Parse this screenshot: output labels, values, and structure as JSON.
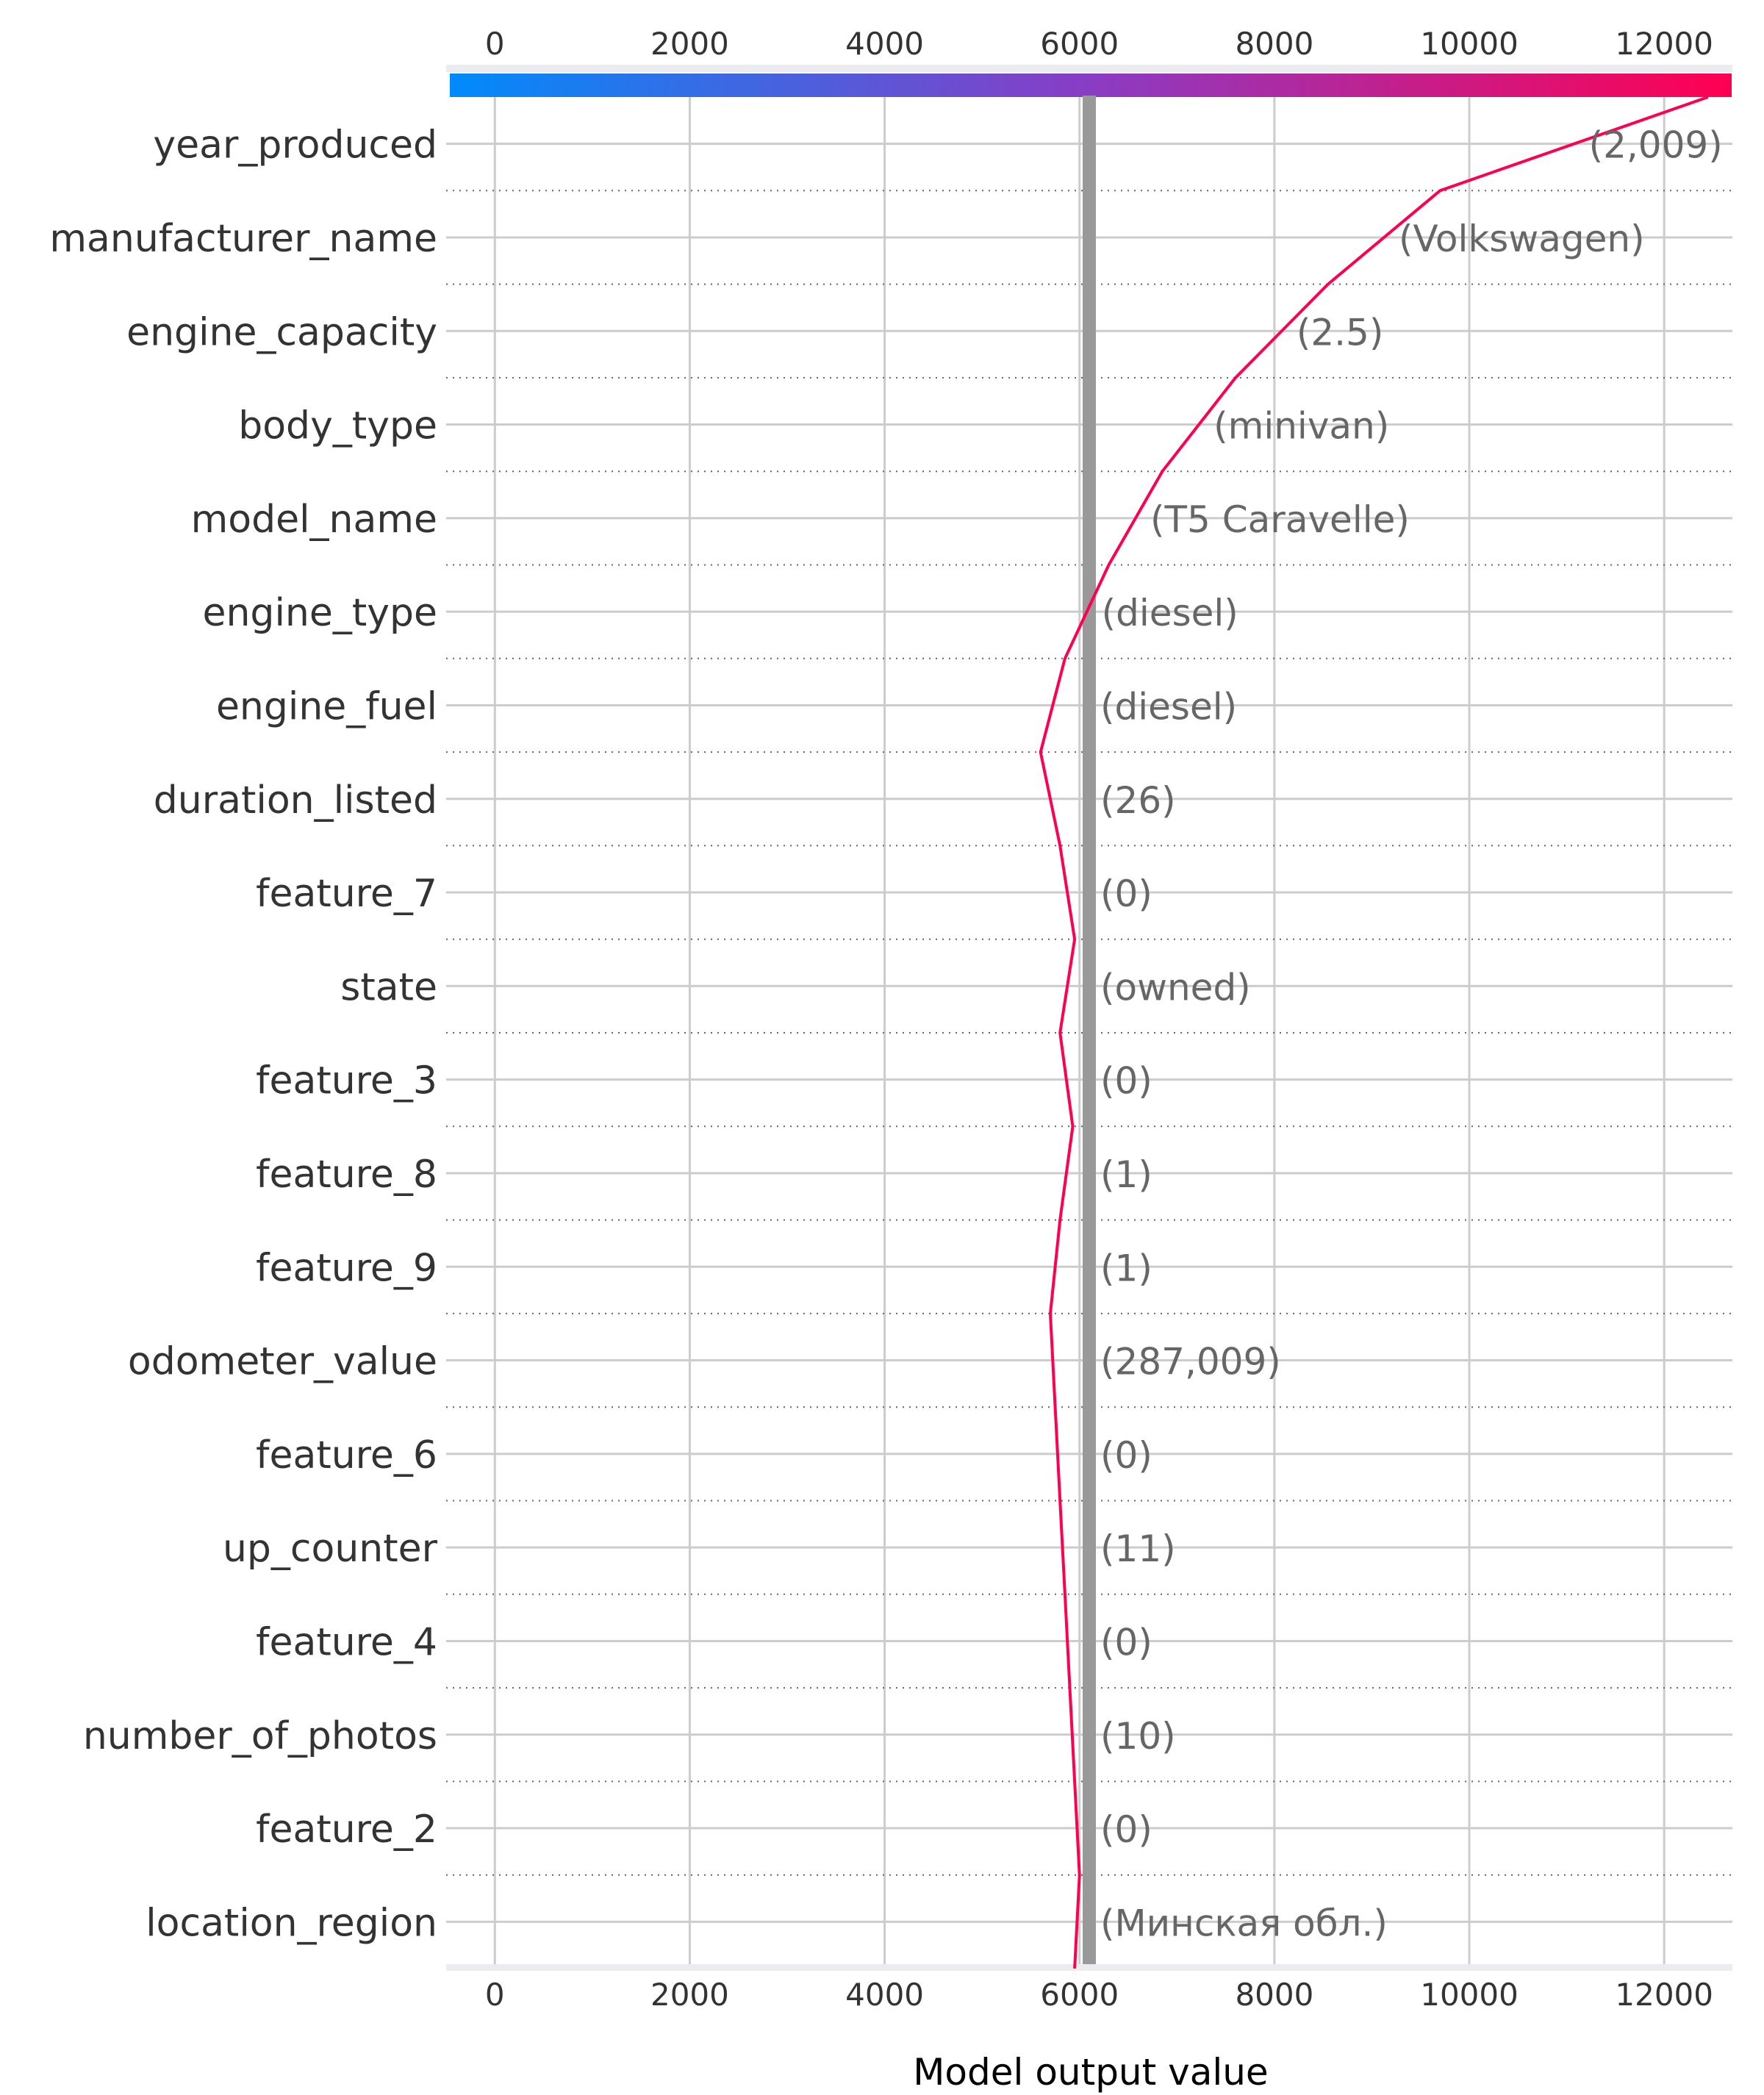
{
  "chart_data": {
    "type": "line",
    "title": "",
    "xlabel": "Model output value",
    "ylabel": "",
    "xlim": [
      -500,
      12700
    ],
    "x_ticks": [
      0,
      2000,
      4000,
      6000,
      8000,
      10000,
      12000
    ],
    "grid": true,
    "base_value": 6100,
    "colorbar": {
      "from": "#008bfb",
      "via": "#8a3cc4",
      "to": "#ff0051",
      "range": [
        -500,
        12700
      ]
    },
    "line_color": "#ff0051",
    "features": [
      {
        "name": "year_produced",
        "value_label": "(2,009)"
      },
      {
        "name": "manufacturer_name",
        "value_label": "(Volkswagen)"
      },
      {
        "name": "engine_capacity",
        "value_label": "(2.5)"
      },
      {
        "name": "body_type",
        "value_label": "(minivan)"
      },
      {
        "name": "model_name",
        "value_label": "(T5 Caravelle)"
      },
      {
        "name": "engine_type",
        "value_label": "(diesel)"
      },
      {
        "name": "engine_fuel",
        "value_label": "(diesel)"
      },
      {
        "name": "duration_listed",
        "value_label": "(26)"
      },
      {
        "name": "feature_7",
        "value_label": "(0)"
      },
      {
        "name": "state",
        "value_label": "(owned)"
      },
      {
        "name": "feature_3",
        "value_label": "(0)"
      },
      {
        "name": "feature_8",
        "value_label": "(1)"
      },
      {
        "name": "feature_9",
        "value_label": "(1)"
      },
      {
        "name": "odometer_value",
        "value_label": "(287,009)"
      },
      {
        "name": "feature_6",
        "value_label": "(0)"
      },
      {
        "name": "up_counter",
        "value_label": "(11)"
      },
      {
        "name": "feature_4",
        "value_label": "(0)"
      },
      {
        "name": "number_of_photos",
        "value_label": "(10)"
      },
      {
        "name": "feature_2",
        "value_label": "(0)"
      },
      {
        "name": "location_region",
        "value_label": "(Минская обл.)"
      }
    ],
    "cumulative_output": [
      12450,
      9700,
      8550,
      7600,
      6850,
      6300,
      5850,
      5600,
      5800,
      5950,
      5800,
      5930,
      5800,
      5700,
      5750,
      5800,
      5850,
      5900,
      5950,
      6000,
      5950
    ]
  }
}
